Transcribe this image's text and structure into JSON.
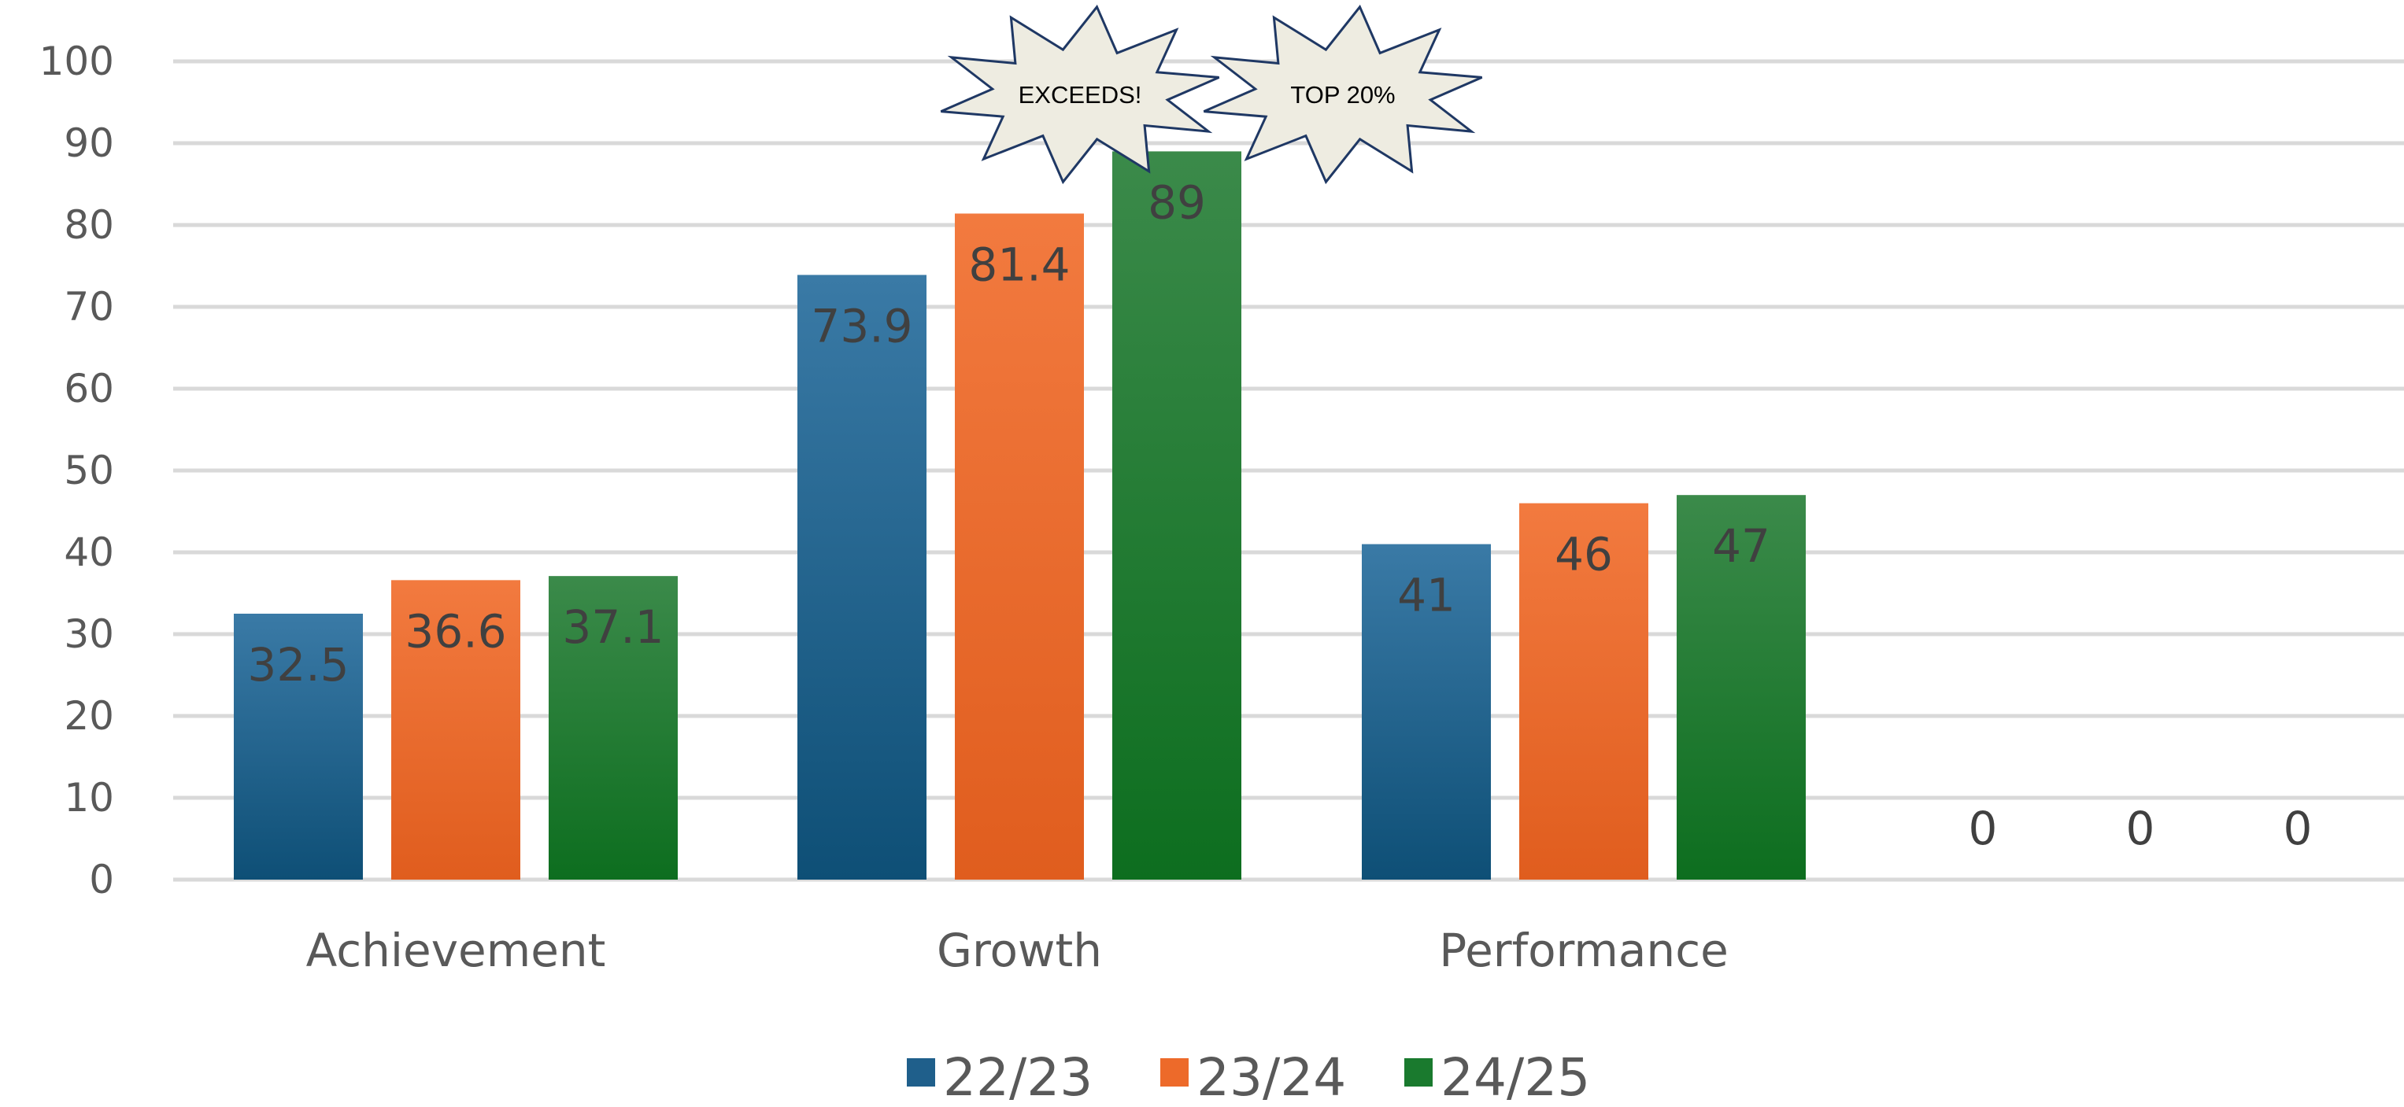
{
  "chart_data": {
    "type": "bar",
    "categories": [
      "Achievement",
      "Growth",
      "Performance",
      ""
    ],
    "series": [
      {
        "name": "22/23",
        "values": [
          32.5,
          73.9,
          41,
          0
        ],
        "color": "#1f5f8b"
      },
      {
        "name": "23/24",
        "values": [
          36.6,
          81.4,
          46,
          0
        ],
        "color": "#ed6a2a"
      },
      {
        "name": "24/25",
        "values": [
          37.1,
          89,
          47,
          0
        ],
        "color": "#1a7a2e"
      }
    ],
    "data_labels": [
      [
        "32.5",
        "73.9",
        "41",
        "0"
      ],
      [
        "36.6",
        "81.4",
        "46",
        "0"
      ],
      [
        "37.1",
        "89",
        "47",
        "0"
      ]
    ],
    "ylim": [
      0,
      100
    ],
    "yticks": [
      0,
      10,
      20,
      30,
      40,
      50,
      60,
      70,
      80,
      90,
      100
    ],
    "grid": true,
    "legend_position": "bottom",
    "callouts": [
      {
        "text": "EXCEEDS!",
        "category": "Growth",
        "series": "23/24"
      },
      {
        "text": "TOP 20%",
        "category": "Growth",
        "series": "24/25"
      }
    ]
  }
}
